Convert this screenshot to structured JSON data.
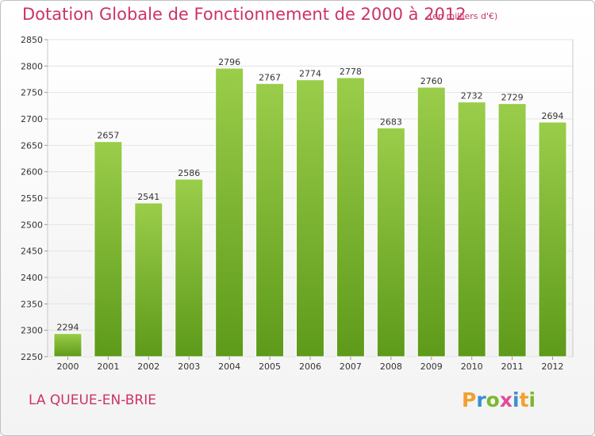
{
  "header": {
    "title": "Dotation Globale de Fonctionnement de 2000 à 2012",
    "unit": "(en milliers d'€)"
  },
  "footer": {
    "commune": "LA QUEUE-EN-BRIE",
    "logo_letters": [
      "P",
      "r",
      "o",
      "x",
      "i",
      "t",
      "i"
    ],
    "logo_colors": [
      "#f0a030",
      "#3b8fd0",
      "#7cb82f",
      "#e04d9a",
      "#3b8fd0",
      "#f0a030",
      "#7cb82f"
    ]
  },
  "colors": {
    "bar_light": "#9acd4a",
    "bar_dark": "#5e9a1a",
    "grid": "#e3e3e3",
    "text": "#cc3366"
  },
  "chart_data": {
    "type": "bar",
    "title": "Dotation Globale de Fonctionnement de 2000 à 2012",
    "subtitle": "(en milliers d'€)",
    "categories": [
      "2000",
      "2001",
      "2002",
      "2003",
      "2004",
      "2005",
      "2006",
      "2007",
      "2008",
      "2009",
      "2010",
      "2011",
      "2012"
    ],
    "values": [
      2294,
      2657,
      2541,
      2586,
      2796,
      2767,
      2774,
      2778,
      2683,
      2760,
      2732,
      2729,
      2694
    ],
    "ylim": [
      2250,
      2850
    ],
    "yticks": [
      2250,
      2300,
      2350,
      2400,
      2450,
      2500,
      2550,
      2600,
      2650,
      2700,
      2750,
      2800,
      2850
    ],
    "grid": true,
    "data_labels": true
  }
}
